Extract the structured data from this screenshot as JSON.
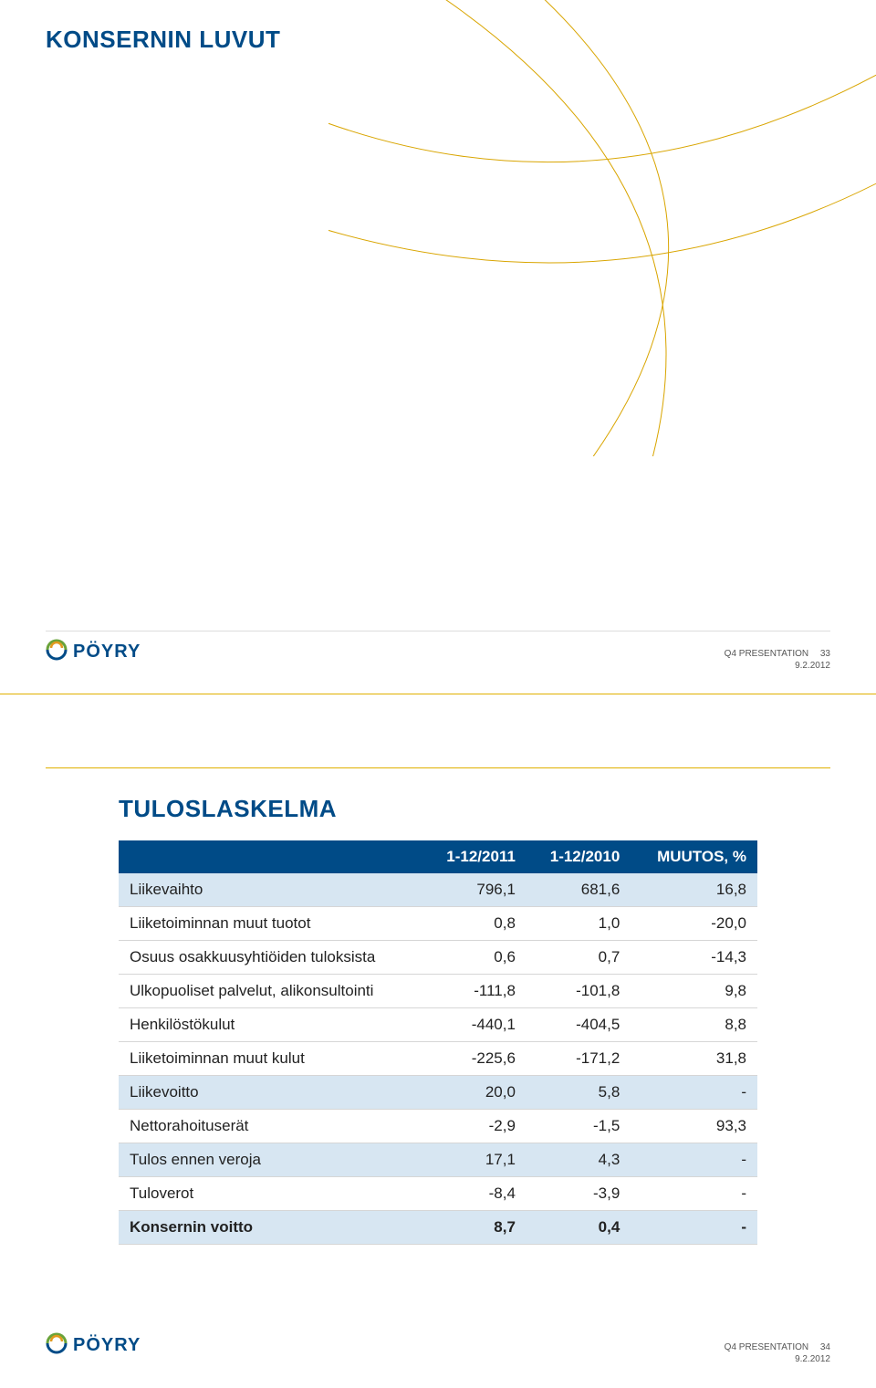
{
  "brand": {
    "name": "PÖYRY",
    "logo_navy": "#004b87",
    "logo_orange": "#e29a1e",
    "logo_green": "#6aa338"
  },
  "footer": {
    "label": "Q4 PRESENTATION",
    "date": "9.2.2012"
  },
  "slide1": {
    "title": "KONSERNIN LUVUT",
    "page_number": "33"
  },
  "slide2": {
    "title": "TULOSLASKELMA",
    "page_number": "34",
    "table": {
      "header_bg": "#004b87",
      "highlight_bg": "#d7e6f2",
      "border_color": "#d6d6d6",
      "columns": [
        "",
        "1-12/2011",
        "1-12/2010",
        "MUUTOS, %"
      ],
      "rows": [
        {
          "label": "Liikevaihto",
          "c1": "796,1",
          "c2": "681,6",
          "c3": "16,8",
          "highlight": true,
          "bold": false
        },
        {
          "label": "Liiketoiminnan muut tuotot",
          "c1": "0,8",
          "c2": "1,0",
          "c3": "-20,0",
          "highlight": false,
          "bold": false
        },
        {
          "label": "Osuus osakkuusyhtiöiden tuloksista",
          "c1": "0,6",
          "c2": "0,7",
          "c3": "-14,3",
          "highlight": false,
          "bold": false
        },
        {
          "label": "Ulkopuoliset palvelut, alikonsultointi",
          "c1": "-111,8",
          "c2": "-101,8",
          "c3": "9,8",
          "highlight": false,
          "bold": false
        },
        {
          "label": "Henkilöstökulut",
          "c1": "-440,1",
          "c2": "-404,5",
          "c3": "8,8",
          "highlight": false,
          "bold": false
        },
        {
          "label": "Liiketoiminnan muut kulut",
          "c1": "-225,6",
          "c2": "-171,2",
          "c3": "31,8",
          "highlight": false,
          "bold": false
        },
        {
          "label": "Liikevoitto",
          "c1": "20,0",
          "c2": "5,8",
          "c3": "-",
          "highlight": true,
          "bold": false
        },
        {
          "label": "Nettorahoituserät",
          "c1": "-2,9",
          "c2": "-1,5",
          "c3": "93,3",
          "highlight": false,
          "bold": false
        },
        {
          "label": "Tulos ennen veroja",
          "c1": "17,1",
          "c2": "4,3",
          "c3": "-",
          "highlight": true,
          "bold": false
        },
        {
          "label": "Tuloverot",
          "c1": "-8,4",
          "c2": "-3,9",
          "c3": "-",
          "highlight": false,
          "bold": false
        },
        {
          "label": "Konsernin voitto",
          "c1": "8,7",
          "c2": "0,4",
          "c3": "-",
          "highlight": true,
          "bold": true
        }
      ]
    }
  }
}
